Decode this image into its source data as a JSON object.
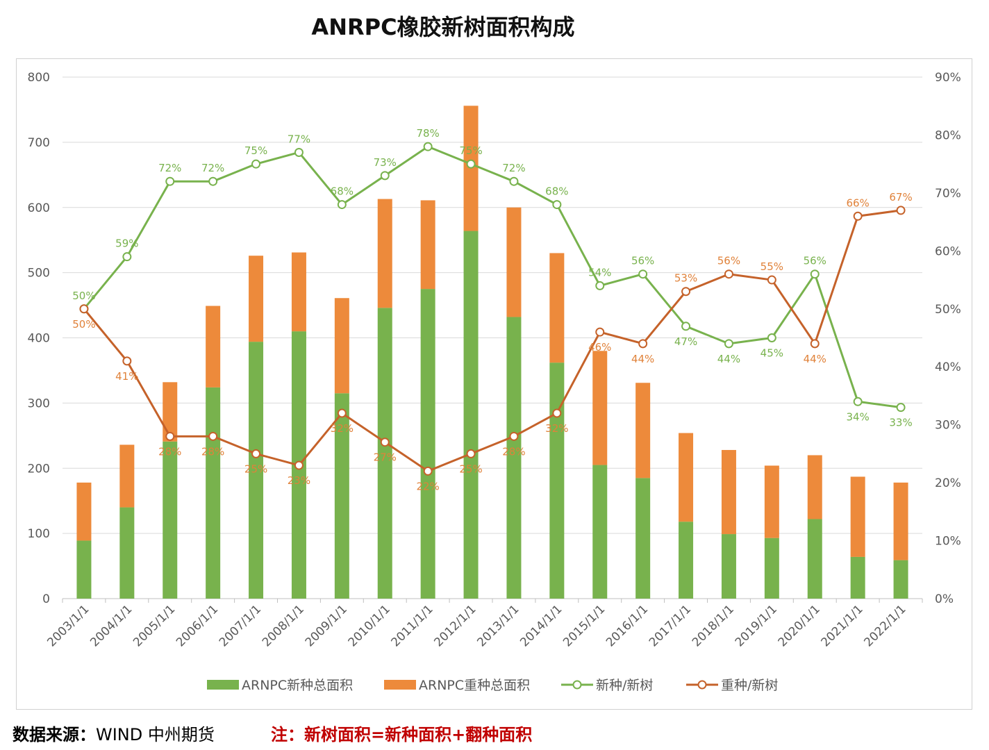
{
  "title": "ANRPC橡胶新树面积构成",
  "footer": {
    "source_label": "数据来源：",
    "source_value": "WIND  中州期货",
    "note": "注：新树面积=新种面积+翻种面积"
  },
  "chart_data": {
    "type": "bar+line",
    "title": "ANRPC橡胶新树面积构成",
    "categories": [
      "2003/1/1",
      "2004/1/1",
      "2005/1/1",
      "2006/1/1",
      "2007/1/1",
      "2008/1/1",
      "2009/1/1",
      "2010/1/1",
      "2011/1/1",
      "2012/1/1",
      "2013/1/1",
      "2014/1/1",
      "2015/1/1",
      "2016/1/1",
      "2017/1/1",
      "2018/1/1",
      "2019/1/1",
      "2020/1/1",
      "2021/1/1",
      "2022/1/1"
    ],
    "left_axis": {
      "ylim": [
        0,
        800
      ],
      "ticks": [
        "0",
        "100",
        "200",
        "300",
        "400",
        "500",
        "600",
        "700",
        "800"
      ]
    },
    "right_axis": {
      "ylim": [
        0,
        90
      ],
      "ticks": [
        "0%",
        "10%",
        "20%",
        "30%",
        "40%",
        "50%",
        "60%",
        "70%",
        "80%",
        "90%"
      ]
    },
    "grid": true,
    "legend_position": "bottom",
    "colors": {
      "new": "#78b24d",
      "replant": "#ed8a3b",
      "new_line": "#78b24d",
      "replant_line": "#c5622a"
    },
    "series": [
      {
        "name": "ARNPC新种总面积",
        "type": "stacked-bar",
        "axis": "left",
        "values": [
          89,
          140,
          241,
          324,
          394,
          410,
          315,
          446,
          475,
          564,
          432,
          362,
          205,
          185,
          118,
          99,
          93,
          122,
          64,
          59
        ]
      },
      {
        "name": "ARNPC重种总面积",
        "type": "stacked-bar",
        "axis": "left",
        "values": [
          89,
          96,
          91,
          125,
          132,
          121,
          146,
          167,
          136,
          192,
          168,
          168,
          175,
          146,
          136,
          129,
          111,
          98,
          123,
          119
        ]
      },
      {
        "name": "新种/新树",
        "type": "line",
        "axis": "right",
        "values": [
          50,
          59,
          72,
          72,
          75,
          77,
          68,
          73,
          78,
          75,
          72,
          68,
          54,
          56,
          47,
          44,
          45,
          56,
          34,
          33
        ],
        "labels": [
          "50%",
          "59%",
          "72%",
          "72%",
          "75%",
          "77%",
          "68%",
          "73%",
          "78%",
          "75%",
          "72%",
          "68%",
          "54%",
          "56%",
          "47%",
          "44%",
          "45%",
          "56%",
          "34%",
          "33%"
        ]
      },
      {
        "name": "重种/新树",
        "type": "line",
        "axis": "right",
        "values": [
          50,
          41,
          28,
          28,
          25,
          23,
          32,
          27,
          22,
          25,
          28,
          32,
          46,
          44,
          53,
          56,
          55,
          44,
          66,
          67
        ],
        "labels": [
          "50%",
          "41%",
          "28%",
          "28%",
          "25%",
          "23%",
          "32%",
          "27%",
          "22%",
          "25%",
          "28%",
          "32%",
          "46%",
          "44%",
          "53%",
          "56%",
          "55%",
          "44%",
          "66%",
          "67%"
        ]
      }
    ]
  }
}
